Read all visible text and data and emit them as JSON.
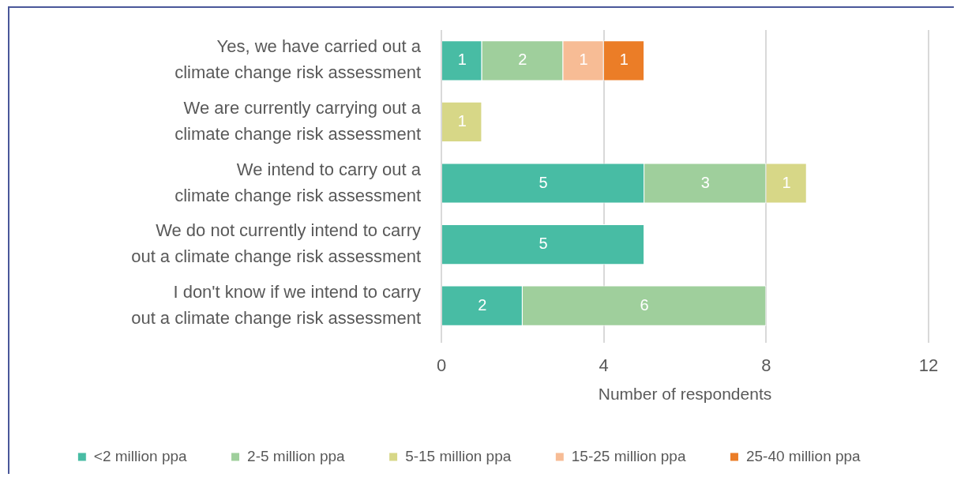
{
  "chart_data": {
    "type": "bar",
    "orientation": "horizontal",
    "stacked": true,
    "categories": [
      "Yes, we have carried out a\nclimate change risk assessment",
      "We are currently carrying out a\nclimate change risk assessment",
      "We intend to carry out a\nclimate change risk assessment",
      "We do not currently intend to carry\nout a climate change risk assessment",
      "I don't know if we intend to carry\nout a climate change risk assessment"
    ],
    "series": [
      {
        "name": "<2 million ppa",
        "color": "#48bca4",
        "values": [
          1,
          null,
          5,
          5,
          2
        ]
      },
      {
        "name": "2-5 million ppa",
        "color": "#9fcf9c",
        "values": [
          2,
          null,
          3,
          null,
          6
        ]
      },
      {
        "name": "5-15 million ppa",
        "color": "#d7d787",
        "values": [
          null,
          1,
          1,
          null,
          null
        ]
      },
      {
        "name": "15-25 million ppa",
        "color": "#f7bc95",
        "values": [
          1,
          null,
          null,
          null,
          null
        ]
      },
      {
        "name": "25-40 million ppa",
        "color": "#eb7d27",
        "values": [
          1,
          null,
          null,
          null,
          null
        ]
      }
    ],
    "xlabel": "Number of respondents",
    "xlim": [
      0,
      12
    ],
    "xticks": [
      0,
      4,
      8,
      12
    ],
    "grid": "x",
    "legend": "bottom",
    "data_labels": true
  }
}
